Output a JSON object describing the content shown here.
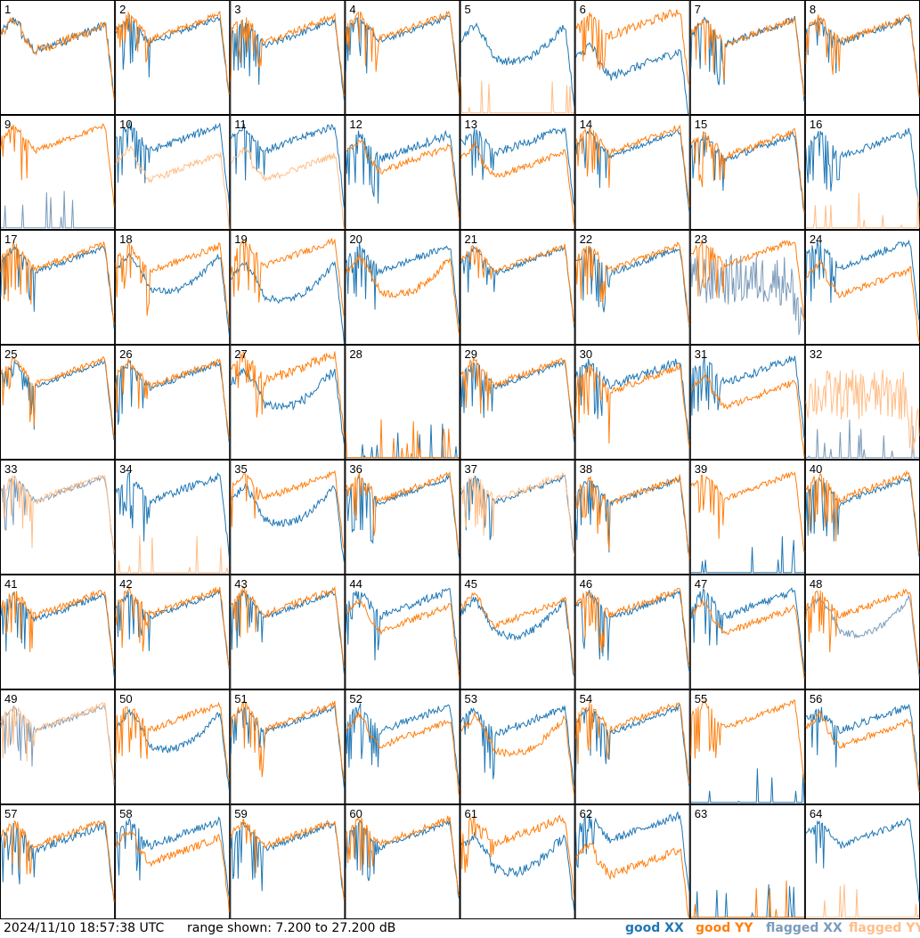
{
  "chart_data": {
    "type": "line",
    "layout": "small multiples, 8 x 8 grid",
    "panel_labels": [
      "1",
      "2",
      "3",
      "4",
      "5",
      "6",
      "7",
      "8",
      "9",
      "10",
      "11",
      "12",
      "13",
      "14",
      "15",
      "16",
      "17",
      "18",
      "19",
      "20",
      "21",
      "22",
      "23",
      "24",
      "25",
      "26",
      "27",
      "28",
      "29",
      "30",
      "31",
      "32",
      "33",
      "34",
      "35",
      "36",
      "37",
      "38",
      "39",
      "40",
      "41",
      "42",
      "43",
      "44",
      "45",
      "46",
      "47",
      "48",
      "49",
      "50",
      "51",
      "52",
      "53",
      "54",
      "55",
      "56",
      "57",
      "58",
      "59",
      "60",
      "61",
      "62",
      "63",
      "64"
    ],
    "ylim": [
      7.2,
      27.2
    ],
    "unit": "dB",
    "series_styles": [
      {
        "name": "good XX",
        "color": "#1f77b4"
      },
      {
        "name": "good YY",
        "color": "#ff7f0e"
      },
      {
        "name": "flagged XX",
        "color": "#7b9bbb"
      },
      {
        "name": "flagged YY",
        "color": "#ffbe88"
      }
    ],
    "panels": [
      {
        "xx": "good",
        "yy": "good",
        "xs": "bowl",
        "ys": "bowl",
        "xo": 0.5,
        "yo": 0.5,
        "xn": 0.8,
        "yn": 0.9
      },
      {
        "xx": "good",
        "yy": "good",
        "xs": "spiky",
        "ys": "spiky",
        "xo": 0.2,
        "yo": -0.4,
        "xn": 0.5,
        "yn": 0.5
      },
      {
        "xx": "good",
        "yy": "good",
        "xs": "spiky",
        "ys": "spiky",
        "xo": 0.8,
        "yo": 0,
        "xn": 0.6,
        "yn": 0.6
      },
      {
        "xx": "good",
        "yy": "good",
        "xs": "spiky",
        "ys": "spiky",
        "xo": 0,
        "yo": -0.5,
        "xn": 0.5,
        "yn": 0.6
      },
      {
        "xx": "good",
        "yy": "flagged",
        "xs": "hump",
        "ys": "dead",
        "xo": 1.5,
        "yo": 0,
        "xn": 0.7,
        "yn": 0.3
      },
      {
        "xx": "good",
        "yy": "good",
        "xs": "bowl",
        "ys": "spiky",
        "xo": 5,
        "yo": -1,
        "xn": 0.8,
        "yn": 0.8
      },
      {
        "xx": "good",
        "yy": "good",
        "xs": "spiky",
        "ys": "spiky",
        "xo": 0.5,
        "yo": 0.5,
        "xn": 0.6,
        "yn": 0.6
      },
      {
        "xx": "good",
        "yy": "good",
        "xs": "spiky",
        "ys": "spiky",
        "xo": 0.3,
        "yo": 0,
        "xn": 0.6,
        "yn": 0.6
      },
      {
        "xx": "flagged",
        "yy": "good",
        "xs": "dead",
        "ys": "spiky",
        "xo": 0,
        "yo": -1,
        "xn": 0.5,
        "yn": 0.5
      },
      {
        "xx": "good",
        "yy": "flagged",
        "xs": "spiky",
        "ys": "bowl",
        "xo": -1,
        "yo": 3,
        "xn": 0.7,
        "yn": 0.6
      },
      {
        "xx": "good",
        "yy": "flagged",
        "xs": "spiky",
        "ys": "bowl",
        "xo": -1,
        "yo": 3,
        "xn": 0.7,
        "yn": 0.6
      },
      {
        "xx": "good",
        "yy": "good",
        "xs": "spiky",
        "ys": "bowl",
        "xo": 0.5,
        "yo": 1.5,
        "xn": 0.8,
        "yn": 0.6
      },
      {
        "xx": "good",
        "yy": "good",
        "xs": "spiky",
        "ys": "bowl",
        "xo": -0.5,
        "yo": 2.5,
        "xn": 0.7,
        "yn": 0.6
      },
      {
        "xx": "good",
        "yy": "good",
        "xs": "spiky",
        "ys": "spiky",
        "xo": 0,
        "yo": -0.8,
        "xn": 0.4,
        "yn": 0.5
      },
      {
        "xx": "good",
        "yy": "good",
        "xs": "spiky",
        "ys": "spiky",
        "xo": 0.6,
        "yo": 0,
        "xn": 0.6,
        "yn": 0.6
      },
      {
        "xx": "good",
        "yy": "flagged",
        "xs": "spiky",
        "ys": "dead",
        "xo": 0,
        "yo": 0,
        "xn": 0.7,
        "yn": 0.3
      },
      {
        "xx": "good",
        "yy": "good",
        "xs": "spiky",
        "ys": "spiky",
        "xo": 0.2,
        "yo": -0.4,
        "xn": 0.5,
        "yn": 0.5
      },
      {
        "xx": "good",
        "yy": "good",
        "xs": "hump",
        "ys": "spiky",
        "xo": 1.5,
        "yo": 0,
        "xn": 0.6,
        "yn": 0.6
      },
      {
        "xx": "good",
        "yy": "good",
        "xs": "hump",
        "ys": "spiky",
        "xo": 3,
        "yo": -1,
        "xn": 0.6,
        "yn": 0.6
      },
      {
        "xx": "good",
        "yy": "good",
        "xs": "spiky",
        "ys": "hump",
        "xo": 0,
        "yo": 2,
        "xn": 0.6,
        "yn": 0.7
      },
      {
        "xx": "good",
        "yy": "good",
        "xs": "spiky",
        "ys": "spiky",
        "xo": 0.3,
        "yo": 0,
        "xn": 0.5,
        "yn": 0.5
      },
      {
        "xx": "good",
        "yy": "good",
        "xs": "spiky",
        "ys": "spiky",
        "xo": 0.4,
        "yo": -0.3,
        "xn": 0.5,
        "yn": 0.5
      },
      {
        "xx": "flagged",
        "yy": "good",
        "xs": "noise",
        "ys": "spiky",
        "xo": 0,
        "yo": -1,
        "xn": 1.2,
        "yn": 0.6
      },
      {
        "xx": "good",
        "yy": "good",
        "xs": "spiky",
        "ys": "bowl",
        "xo": -0.8,
        "yo": 3,
        "xn": 0.7,
        "yn": 0.6
      },
      {
        "xx": "good",
        "yy": "good",
        "xs": "spiky",
        "ys": "spiky",
        "xo": 0.1,
        "yo": -0.4,
        "xn": 0.4,
        "yn": 0.5
      },
      {
        "xx": "good",
        "yy": "good",
        "xs": "spiky",
        "ys": "spiky",
        "xo": 0.3,
        "yo": 0,
        "xn": 0.6,
        "yn": 0.6
      },
      {
        "xx": "good",
        "yy": "good",
        "xs": "hump",
        "ys": "spiky",
        "xo": 1.5,
        "yo": -1,
        "xn": 0.9,
        "yn": 0.9
      },
      {
        "xx": "good",
        "yy": "good",
        "xs": "dead",
        "ys": "dead",
        "xo": 0,
        "yo": 0,
        "xn": 0.3,
        "yn": 0.3
      },
      {
        "xx": "good",
        "yy": "good",
        "xs": "spiky",
        "ys": "spiky",
        "xo": 0.2,
        "yo": -0.3,
        "xn": 0.5,
        "yn": 0.6
      },
      {
        "xx": "good",
        "yy": "good",
        "xs": "spiky",
        "ys": "spiky",
        "xo": 0,
        "yo": 1,
        "xn": 0.7,
        "yn": 0.6
      },
      {
        "xx": "good",
        "yy": "good",
        "xs": "spiky",
        "ys": "bowl",
        "xo": -0.5,
        "yo": 2.5,
        "xn": 0.7,
        "yn": 0.6
      },
      {
        "xx": "flagged",
        "yy": "flagged",
        "xs": "dead",
        "ys": "noise",
        "xo": 0,
        "yo": 0,
        "xn": 0.3,
        "yn": 1.2
      },
      {
        "xx": "flagged",
        "yy": "flagged",
        "xs": "spiky",
        "ys": "spiky",
        "xo": 0.1,
        "yo": -0.1,
        "xn": 0.5,
        "yn": 0.5
      },
      {
        "xx": "good",
        "yy": "flagged",
        "xs": "spiky",
        "ys": "dead",
        "xo": 0,
        "yo": 0,
        "xn": 0.7,
        "yn": 0.6
      },
      {
        "xx": "good",
        "yy": "good",
        "xs": "hump",
        "ys": "spiky",
        "xo": 1.8,
        "yo": -0.5,
        "xn": 0.7,
        "yn": 0.6
      },
      {
        "xx": "good",
        "yy": "good",
        "xs": "spiky",
        "ys": "spiky",
        "xo": 0.3,
        "yo": -0.2,
        "xn": 0.5,
        "yn": 0.6
      },
      {
        "xx": "good",
        "yy": "flagged",
        "xs": "spiky",
        "ys": "spiky",
        "xo": 0.2,
        "yo": -0.2,
        "xn": 0.5,
        "yn": 0.6
      },
      {
        "xx": "good",
        "yy": "good",
        "xs": "spiky",
        "ys": "spiky",
        "xo": 0.5,
        "yo": 0.3,
        "xn": 0.6,
        "yn": 0.6
      },
      {
        "xx": "good",
        "yy": "good",
        "xs": "dead",
        "ys": "spiky",
        "xo": 0,
        "yo": -0.5,
        "xn": 0.4,
        "yn": 0.5
      },
      {
        "xx": "good",
        "yy": "good",
        "xs": "spiky",
        "ys": "spiky",
        "xo": 0.3,
        "yo": -0.4,
        "xn": 0.5,
        "yn": 0.6
      },
      {
        "xx": "good",
        "yy": "good",
        "xs": "spiky",
        "ys": "spiky",
        "xo": 0.6,
        "yo": 0,
        "xn": 0.6,
        "yn": 0.6
      },
      {
        "xx": "good",
        "yy": "good",
        "xs": "spiky",
        "ys": "spiky",
        "xo": 0.3,
        "yo": -0.3,
        "xn": 0.5,
        "yn": 0.6
      },
      {
        "xx": "good",
        "yy": "good",
        "xs": "spiky",
        "ys": "spiky",
        "xo": 0.2,
        "yo": -0.3,
        "xn": 0.5,
        "yn": 0.6
      },
      {
        "xx": "good",
        "yy": "good",
        "xs": "spiky",
        "ys": "bowl",
        "xo": 0,
        "yo": 1.5,
        "xn": 0.7,
        "yn": 0.6
      },
      {
        "xx": "good",
        "yy": "good",
        "xs": "hump",
        "ys": "bowl",
        "xo": 1.5,
        "yo": 0.5,
        "xn": 0.7,
        "yn": 0.6
      },
      {
        "xx": "good",
        "yy": "good",
        "xs": "spiky",
        "ys": "spiky",
        "xo": 0.4,
        "yo": -0.2,
        "xn": 0.6,
        "yn": 0.6
      },
      {
        "xx": "good",
        "yy": "good",
        "xs": "spiky",
        "ys": "bowl",
        "xo": 0,
        "yo": 1.8,
        "xn": 0.7,
        "yn": 0.6
      },
      {
        "xx": "flagged",
        "yy": "good",
        "xs": "hump",
        "ys": "spiky",
        "xo": 1.2,
        "yo": 0,
        "xn": 0.6,
        "yn": 0.6
      },
      {
        "xx": "flagged",
        "yy": "flagged",
        "xs": "spiky",
        "ys": "spiky",
        "xo": 0,
        "yo": -0.2,
        "xn": 0.5,
        "yn": 0.5
      },
      {
        "xx": "good",
        "yy": "good",
        "xs": "hump",
        "ys": "spiky",
        "xo": 1.2,
        "yo": -0.3,
        "xn": 0.6,
        "yn": 0.6
      },
      {
        "xx": "good",
        "yy": "good",
        "xs": "spiky",
        "ys": "spiky",
        "xo": 0.2,
        "yo": -0.3,
        "xn": 0.5,
        "yn": 0.6
      },
      {
        "xx": "good",
        "yy": "good",
        "xs": "spiky",
        "ys": "bowl",
        "xo": 0,
        "yo": 1.5,
        "xn": 0.7,
        "yn": 0.6
      },
      {
        "xx": "good",
        "yy": "good",
        "xs": "spiky",
        "ys": "hump",
        "xo": 0.5,
        "yo": 2,
        "xn": 0.7,
        "yn": 0.7
      },
      {
        "xx": "good",
        "yy": "good",
        "xs": "spiky",
        "ys": "spiky",
        "xo": 0.3,
        "yo": -0.4,
        "xn": 0.5,
        "yn": 0.6
      },
      {
        "xx": "good",
        "yy": "good",
        "xs": "dead",
        "ys": "spiky",
        "xo": 0,
        "yo": -0.6,
        "xn": 0.4,
        "yn": 0.5
      },
      {
        "xx": "good",
        "yy": "good",
        "xs": "spiky",
        "ys": "bowl",
        "xo": 0,
        "yo": 1.5,
        "xn": 0.7,
        "yn": 0.6
      },
      {
        "xx": "good",
        "yy": "good",
        "xs": "spiky",
        "ys": "spiky",
        "xo": 0.8,
        "yo": 0,
        "xn": 0.7,
        "yn": 0.6
      },
      {
        "xx": "good",
        "yy": "good",
        "xs": "spiky",
        "ys": "bowl",
        "xo": 0,
        "yo": 1.8,
        "xn": 0.7,
        "yn": 0.7
      },
      {
        "xx": "good",
        "yy": "good",
        "xs": "spiky",
        "ys": "spiky",
        "xo": 0.5,
        "yo": 0,
        "xn": 0.6,
        "yn": 0.6
      },
      {
        "xx": "good",
        "yy": "good",
        "xs": "spiky",
        "ys": "spiky",
        "xo": 0.3,
        "yo": -0.4,
        "xn": 0.5,
        "yn": 0.6
      },
      {
        "xx": "good",
        "yy": "good",
        "xs": "hump",
        "ys": "spiky",
        "xo": 2.5,
        "yo": -0.5,
        "xn": 0.9,
        "yn": 0.8
      },
      {
        "xx": "good",
        "yy": "good",
        "xs": "spiky",
        "ys": "bowl",
        "xo": -1,
        "yo": 4,
        "xn": 0.7,
        "yn": 0.8
      },
      {
        "xx": "good",
        "yy": "good",
        "xs": "dead",
        "ys": "dead",
        "xo": 0,
        "yo": 0,
        "xn": 0.3,
        "yn": 0.3
      },
      {
        "xx": "good",
        "yy": "flagged",
        "xs": "spiky",
        "ys": "dead",
        "xo": 0,
        "yo": 0,
        "xn": 0.6,
        "yn": 0.3
      }
    ],
    "legend": [
      "good XX",
      "good YY",
      "flagged XX",
      "flagged YY"
    ]
  },
  "footer": {
    "timestamp": "2024/11/10 18:57:38 UTC",
    "range_text": "range shown: 7.200 to 27.200 dB"
  },
  "legend_labels": {
    "good_xx": "good XX",
    "good_yy": "good YY",
    "flagged_xx": "flagged XX",
    "flagged_yy": "flagged YY"
  },
  "colors": {
    "good_xx": "#1f77b4",
    "good_yy": "#ff7f0e",
    "flagged_xx": "#7b9bbb",
    "flagged_yy": "#ffbe88"
  }
}
